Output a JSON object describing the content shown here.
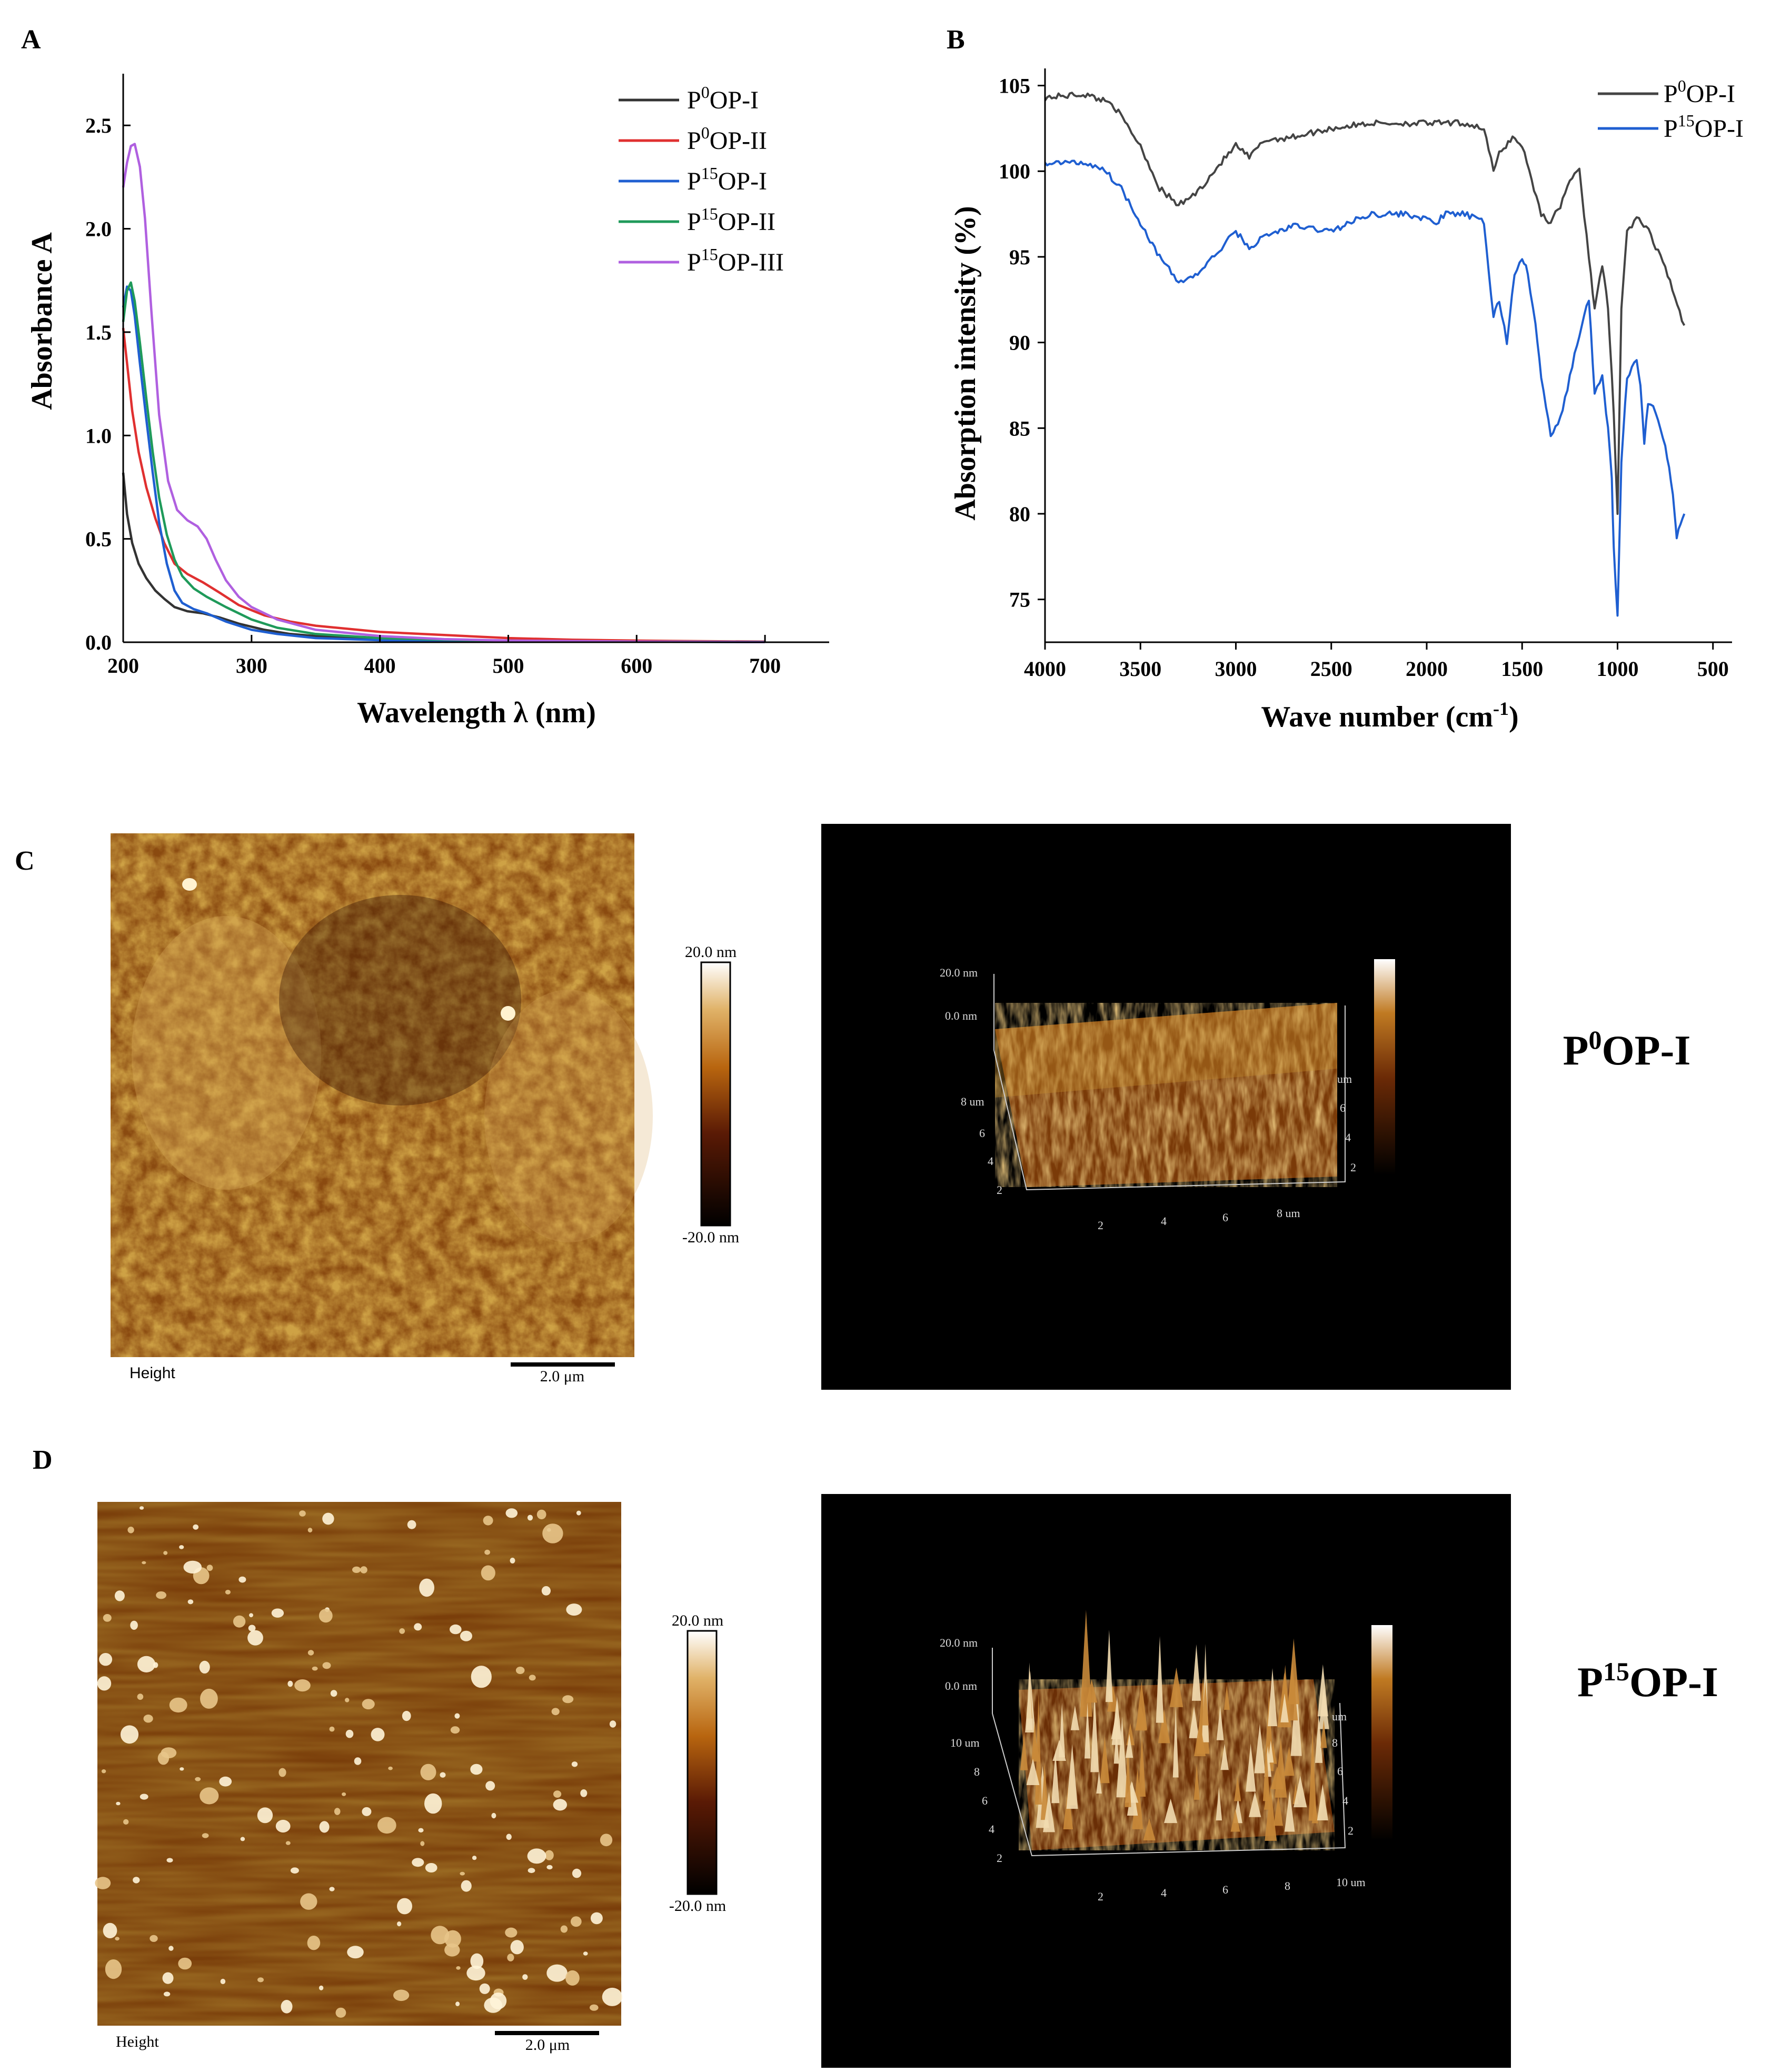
{
  "panels": {
    "a": "A",
    "b": "B",
    "c": "C",
    "d": "D"
  },
  "chart_data": [
    {
      "type": "line",
      "panel": "A",
      "title": "",
      "xlabel": "Wavelength λ (nm)",
      "ylabel": "Absorbance A",
      "xlim": [
        200,
        750
      ],
      "ylim": [
        0,
        2.75
      ],
      "xticks": [
        "200",
        "300",
        "400",
        "500",
        "600",
        "700"
      ],
      "yticks": [
        "0.0",
        "0.5",
        "1.0",
        "1.5",
        "2.0",
        "2.5"
      ],
      "legend": {
        "position": "top-right"
      },
      "series": [
        {
          "name": "P0OP-I",
          "label_base": "P",
          "label_sup": "0",
          "label_rest": "OP-I",
          "color": "#333333",
          "x": [
            200,
            203,
            207,
            212,
            218,
            225,
            232,
            240,
            250,
            262,
            275,
            290,
            310,
            330,
            350,
            400,
            450,
            500,
            550,
            600,
            650,
            700
          ],
          "y": [
            0.82,
            0.62,
            0.48,
            0.38,
            0.31,
            0.25,
            0.21,
            0.17,
            0.15,
            0.14,
            0.12,
            0.09,
            0.06,
            0.04,
            0.03,
            0.02,
            0.012,
            0.008,
            0.005,
            0.003,
            0.002,
            0.001
          ]
        },
        {
          "name": "P0OP-II",
          "label_base": "P",
          "label_sup": "0",
          "label_rest": "OP-II",
          "color": "#e03030",
          "x": [
            200,
            203,
            207,
            212,
            218,
            225,
            232,
            240,
            250,
            262,
            275,
            290,
            310,
            330,
            350,
            400,
            450,
            500,
            550,
            600,
            650,
            700
          ],
          "y": [
            1.52,
            1.35,
            1.12,
            0.92,
            0.75,
            0.6,
            0.48,
            0.38,
            0.33,
            0.29,
            0.24,
            0.18,
            0.13,
            0.1,
            0.08,
            0.05,
            0.035,
            0.02,
            0.012,
            0.008,
            0.005,
            0.003
          ]
        },
        {
          "name": "P15OP-I",
          "label_base": "P",
          "label_sup": "15",
          "label_rest": "OP-I",
          "color": "#1f5fd1",
          "x": [
            200,
            203,
            206,
            209,
            213,
            218,
            223,
            228,
            234,
            240,
            246,
            255,
            265,
            280,
            300,
            320,
            350,
            400,
            450,
            500,
            600,
            700
          ],
          "y": [
            1.62,
            1.72,
            1.7,
            1.58,
            1.35,
            1.08,
            0.82,
            0.58,
            0.38,
            0.25,
            0.19,
            0.16,
            0.14,
            0.1,
            0.06,
            0.04,
            0.02,
            0.01,
            0.006,
            0.004,
            0.002,
            0.001
          ]
        },
        {
          "name": "P15OP-II",
          "label_base": "P",
          "label_sup": "15",
          "label_rest": "OP-II",
          "color": "#1f9a5a",
          "x": [
            200,
            203,
            206,
            209,
            213,
            218,
            223,
            228,
            234,
            240,
            246,
            255,
            265,
            280,
            300,
            320,
            350,
            400,
            450,
            500,
            600,
            700
          ],
          "y": [
            1.55,
            1.7,
            1.74,
            1.65,
            1.45,
            1.18,
            0.92,
            0.7,
            0.52,
            0.4,
            0.32,
            0.26,
            0.22,
            0.17,
            0.11,
            0.07,
            0.04,
            0.02,
            0.012,
            0.007,
            0.003,
            0.002
          ]
        },
        {
          "name": "P15OP-III",
          "label_base": "P",
          "label_sup": "15",
          "label_rest": "OP-III",
          "color": "#b060e0",
          "x": [
            200,
            203,
            206,
            209,
            213,
            217,
            222,
            228,
            235,
            242,
            250,
            258,
            265,
            272,
            280,
            290,
            300,
            320,
            350,
            400,
            450,
            500,
            600,
            700
          ],
          "y": [
            2.2,
            2.32,
            2.4,
            2.41,
            2.3,
            2.05,
            1.6,
            1.1,
            0.78,
            0.64,
            0.59,
            0.56,
            0.5,
            0.4,
            0.3,
            0.22,
            0.17,
            0.11,
            0.06,
            0.03,
            0.015,
            0.008,
            0.003,
            0.001
          ]
        }
      ]
    },
    {
      "type": "line",
      "panel": "B",
      "title": "",
      "xlabel": "Wave number (cm",
      "xlabel_sup": "-1",
      "xlabel_end": ")",
      "ylabel": "Absorption intensity (%)",
      "xlim": [
        4000,
        400
      ],
      "ylim": [
        72.5,
        106
      ],
      "xticks": [
        "4000",
        "3500",
        "3000",
        "2500",
        "2000",
        "1500",
        "1000",
        "500"
      ],
      "yticks": [
        "75",
        "80",
        "85",
        "90",
        "95",
        "100",
        "105"
      ],
      "legend": {
        "position": "top-right"
      },
      "series": [
        {
          "name": "P0OP-I",
          "label_base": "P",
          "label_sup": "0",
          "label_rest": "OP-I",
          "color": "#444444",
          "x": [
            4000,
            3800,
            3650,
            3500,
            3400,
            3300,
            3200,
            3100,
            3000,
            2930,
            2850,
            2700,
            2500,
            2300,
            2100,
            1900,
            1800,
            1700,
            1650,
            1620,
            1550,
            1500,
            1450,
            1400,
            1350,
            1300,
            1250,
            1200,
            1150,
            1120,
            1080,
            1050,
            1020,
            1000,
            980,
            950,
            900,
            850,
            800,
            750,
            700,
            650
          ],
          "y": [
            104.3,
            104.5,
            104.0,
            101.5,
            99.0,
            98.0,
            98.8,
            100.2,
            101.5,
            100.8,
            101.8,
            102.0,
            102.5,
            102.8,
            102.8,
            102.8,
            102.8,
            102.5,
            100.0,
            101.0,
            102.0,
            101.5,
            99.5,
            97.5,
            97.0,
            98.0,
            99.5,
            100.0,
            95.0,
            92.0,
            94.5,
            92.0,
            86.0,
            80.0,
            92.0,
            96.5,
            97.2,
            96.8,
            95.5,
            94.5,
            92.5,
            91.0
          ]
        },
        {
          "name": "P15OP-I",
          "label_base": "P",
          "label_sup": "15",
          "label_rest": "OP-I",
          "color": "#1f5fd1",
          "x": [
            4000,
            3800,
            3700,
            3600,
            3500,
            3400,
            3300,
            3200,
            3100,
            3000,
            2930,
            2850,
            2700,
            2500,
            2300,
            2100,
            1950,
            1900,
            1800,
            1700,
            1650,
            1620,
            1580,
            1540,
            1500,
            1470,
            1430,
            1400,
            1350,
            1300,
            1250,
            1200,
            1150,
            1120,
            1080,
            1050,
            1030,
            1020,
            1000,
            980,
            950,
            900,
            880,
            860,
            840,
            800,
            750,
            720,
            700,
            690,
            670,
            650
          ],
          "y": [
            100.5,
            100.5,
            100.2,
            99.0,
            97.0,
            95.0,
            93.5,
            94.0,
            95.2,
            96.5,
            95.5,
            96.2,
            96.8,
            96.5,
            97.5,
            97.5,
            97.0,
            97.5,
            97.5,
            97.0,
            91.5,
            92.5,
            90.0,
            94.0,
            95.0,
            94.0,
            91.0,
            88.0,
            84.5,
            85.5,
            88.0,
            90.5,
            92.5,
            87.0,
            88.0,
            85.0,
            82.0,
            78.0,
            74.0,
            83.0,
            88.0,
            89.0,
            87.5,
            84.0,
            86.5,
            86.0,
            84.0,
            82.0,
            80.0,
            78.5,
            79.5,
            80.0
          ]
        }
      ]
    }
  ],
  "afm": {
    "c": {
      "sample_label": "P0OP-I",
      "label_base": "P",
      "label_sup": "0",
      "label_rest": "OP-I",
      "channel_label": "Height",
      "scalebar_label": "2.0 μm",
      "colorbar_max": "20.0 nm",
      "colorbar_min": "-20.0 nm",
      "surface3d": {
        "z_labels": [
          "20.0 nm",
          "0.0 nm"
        ],
        "y_left_labels": [
          "8 um",
          "6",
          "4",
          "2"
        ],
        "x_labels": [
          "2",
          "4",
          "6",
          "8 um"
        ],
        "y_right_labels": [
          "um",
          "6",
          "4",
          "2"
        ]
      }
    },
    "d": {
      "sample_label": "P15OP-I",
      "label_base": "P",
      "label_sup": "15",
      "label_rest": "OP-I",
      "channel_label": "Height",
      "scalebar_label": "2.0 μm",
      "colorbar_max": "20.0 nm",
      "colorbar_min": "-20.0 nm",
      "surface3d": {
        "z_labels": [
          "20.0 nm",
          "0.0 nm"
        ],
        "y_left_labels": [
          "10 um",
          "8",
          "6",
          "4",
          "2"
        ],
        "x_labels": [
          "2",
          "4",
          "6",
          "8",
          "10 um"
        ],
        "y_right_labels": [
          "um",
          "8",
          "6",
          "4",
          "2"
        ]
      }
    }
  }
}
